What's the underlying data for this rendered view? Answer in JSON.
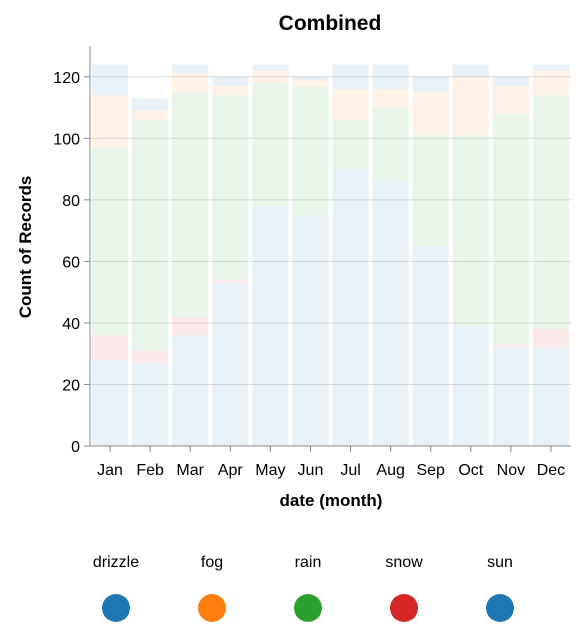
{
  "chart_data": {
    "type": "bar",
    "stacked": true,
    "title": "Combined",
    "xlabel": "date (month)",
    "ylabel": "Count of Records",
    "ylim": [
      0,
      130
    ],
    "yticks": [
      0,
      20,
      40,
      60,
      80,
      100,
      120
    ],
    "grid": true,
    "legend_position": "bottom",
    "categories": [
      "Jan",
      "Feb",
      "Mar",
      "Apr",
      "May",
      "Jun",
      "Jul",
      "Aug",
      "Sep",
      "Oct",
      "Nov",
      "Dec"
    ],
    "series": [
      {
        "name": "sun",
        "color": "#1f77b4",
        "values": [
          28,
          27,
          36,
          53,
          78,
          75,
          90,
          86,
          65,
          39,
          32,
          32
        ]
      },
      {
        "name": "snow",
        "color": "#d62728",
        "values": [
          8,
          4,
          6,
          1,
          0,
          0,
          0,
          0,
          0,
          0,
          1,
          6
        ]
      },
      {
        "name": "rain",
        "color": "#2ca02c",
        "values": [
          61,
          75,
          73,
          60,
          40,
          42,
          16,
          24,
          36,
          62,
          75,
          76
        ]
      },
      {
        "name": "fog",
        "color": "#ff7f0e",
        "values": [
          17,
          3,
          6,
          3,
          4,
          2,
          10,
          6,
          14,
          19,
          9,
          8
        ]
      },
      {
        "name": "drizzle",
        "color": "#1f77b4",
        "values": [
          10,
          4,
          3,
          3,
          2,
          1,
          8,
          8,
          5,
          4,
          3,
          2
        ]
      }
    ],
    "legend": [
      {
        "label": "drizzle",
        "color": "#1f77b4"
      },
      {
        "label": "fog",
        "color": "#ff7f0e"
      },
      {
        "label": "rain",
        "color": "#2ca02c"
      },
      {
        "label": "snow",
        "color": "#d62728"
      },
      {
        "label": "sun",
        "color": "#1f77b4"
      }
    ],
    "fill_opacity": 0.1
  }
}
